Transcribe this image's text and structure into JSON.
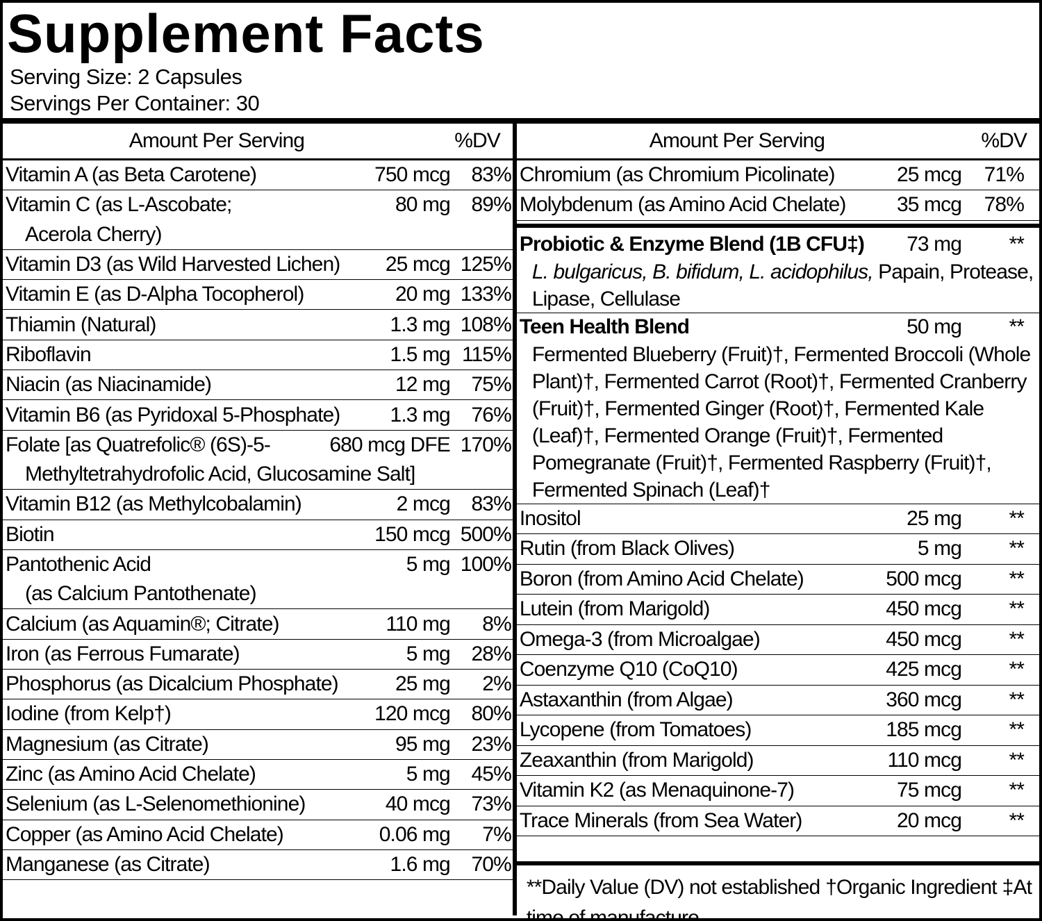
{
  "title": "Supplement Facts",
  "serving_size": "Serving Size: 2 Capsules",
  "servings_per_container": "Servings Per Container: 30",
  "left": {
    "header": {
      "amount": "Amount Per Serving",
      "dv": "%DV"
    },
    "rows": [
      {
        "name": "Vitamin A (as Beta Carotene)",
        "amount": "750 mcg",
        "dv": "83%"
      },
      {
        "name": "Vitamin C (as L-Ascobate;",
        "name_cont": "Acerola Cherry)",
        "amount": "80 mg",
        "dv": "89%"
      },
      {
        "name": "Vitamin D3 (as Wild Harvested Lichen)",
        "amount": "25 mcg",
        "dv": "125%"
      },
      {
        "name": "Vitamin E (as D-Alpha Tocopherol)",
        "amount": "20 mg",
        "dv": "133%"
      },
      {
        "name": "Thiamin (Natural)",
        "amount": "1.3 mg",
        "dv": "108%"
      },
      {
        "name": "Riboflavin",
        "amount": "1.5 mg",
        "dv": "115%"
      },
      {
        "name": "Niacin (as Niacinamide)",
        "amount": "12 mg",
        "dv": "75%"
      },
      {
        "name": "Vitamin B6 (as Pyridoxal 5-Phosphate)",
        "amount": "1.3 mg",
        "dv": "76%"
      },
      {
        "name": "Folate [as Quatrefolic® (6S)-5-",
        "name_cont": "Methyltetrahydrofolic Acid, Glucosamine Salt]",
        "amount": "680 mcg DFE",
        "dv": "170%"
      },
      {
        "name": "Vitamin B12 (as Methylcobalamin)",
        "amount": "2 mcg",
        "dv": "83%"
      },
      {
        "name": "Biotin",
        "amount": "150 mcg",
        "dv": "500%"
      },
      {
        "name": "Pantothenic Acid",
        "name_cont": "(as Calcium Pantothenate)",
        "amount": "5 mg",
        "dv": "100%"
      },
      {
        "name": "Calcium (as Aquamin®; Citrate)",
        "amount": "110 mg",
        "dv": "8%"
      },
      {
        "name": "Iron (as Ferrous Fumarate)",
        "amount": "5 mg",
        "dv": "28%"
      },
      {
        "name": "Phosphorus (as Dicalcium Phosphate)",
        "amount": "25 mg",
        "dv": "2%"
      },
      {
        "name": "Iodine (from Kelp†)",
        "amount": "120 mcg",
        "dv": "80%"
      },
      {
        "name": "Magnesium (as Citrate)",
        "amount": "95 mg",
        "dv": "23%"
      },
      {
        "name": "Zinc (as Amino Acid Chelate)",
        "amount": "5 mg",
        "dv": "45%"
      },
      {
        "name": "Selenium (as L-Selenomethionine)",
        "amount": "40 mcg",
        "dv": "73%"
      },
      {
        "name": "Copper (as Amino Acid Chelate)",
        "amount": "0.06 mg",
        "dv": "7%"
      },
      {
        "name": "Manganese (as Citrate)",
        "amount": "1.6 mg",
        "dv": "70%"
      }
    ]
  },
  "right": {
    "header": {
      "amount": "Amount Per Serving",
      "dv": "%DV"
    },
    "rows": [
      {
        "name": "Chromium (as Chromium Picolinate)",
        "amount": "25 mcg",
        "dv": "71%"
      },
      {
        "name": "Molybdenum (as Amino Acid Chelate)",
        "amount": "35 mcg",
        "dv": "78%"
      }
    ],
    "blends": [
      {
        "name": "Probiotic & Enzyme Blend (1B CFU‡)",
        "amount": "73 mg",
        "dv": "**",
        "desc_italic": "L. bulgaricus, B. bifidum, L. acidophilus,",
        "desc": "Papain, Protease, Lipase, Cellulase"
      },
      {
        "name": "Teen Health Blend",
        "amount": "50 mg",
        "dv": "**",
        "desc": "Fermented Blueberry (Fruit)†, Fermented Broccoli (Whole Plant)†, Fermented Carrot (Root)†, Fermented Cranberry (Fruit)†, Fermented Ginger (Root)†, Fermented Kale (Leaf)†, Fermented Orange (Fruit)†, Fermented Pomegranate (Fruit)†, Fermented Raspberry (Fruit)†, Fermented Spinach (Leaf)†"
      }
    ],
    "others": [
      {
        "name": "Inositol",
        "amount": "25 mg",
        "dv": "**"
      },
      {
        "name": "Rutin (from Black Olives)",
        "amount": "5 mg",
        "dv": "**"
      },
      {
        "name": "Boron (from Amino Acid Chelate)",
        "amount": "500 mcg",
        "dv": "**"
      },
      {
        "name": "Lutein (from Marigold)",
        "amount": "450 mcg",
        "dv": "**"
      },
      {
        "name": "Omega-3 (from Microalgae)",
        "amount": "450 mcg",
        "dv": "**"
      },
      {
        "name": "Coenzyme Q10 (CoQ10)",
        "amount": "425 mcg",
        "dv": "**"
      },
      {
        "name": "Astaxanthin (from Algae)",
        "amount": "360 mcg",
        "dv": "**"
      },
      {
        "name": "Lycopene (from Tomatoes)",
        "amount": "185 mcg",
        "dv": "**"
      },
      {
        "name": "Zeaxanthin (from Marigold)",
        "amount": "110 mcg",
        "dv": "**"
      },
      {
        "name": "Vitamin K2 (as Menaquinone-7)",
        "amount": "75 mcg",
        "dv": "**"
      },
      {
        "name": "Trace Minerals (from Sea Water)",
        "amount": "20 mcg",
        "dv": "**"
      }
    ],
    "footnotes": [
      "**Daily Value (DV) not established",
      "†Organic Ingredient",
      "‡At time of manufacture"
    ]
  }
}
